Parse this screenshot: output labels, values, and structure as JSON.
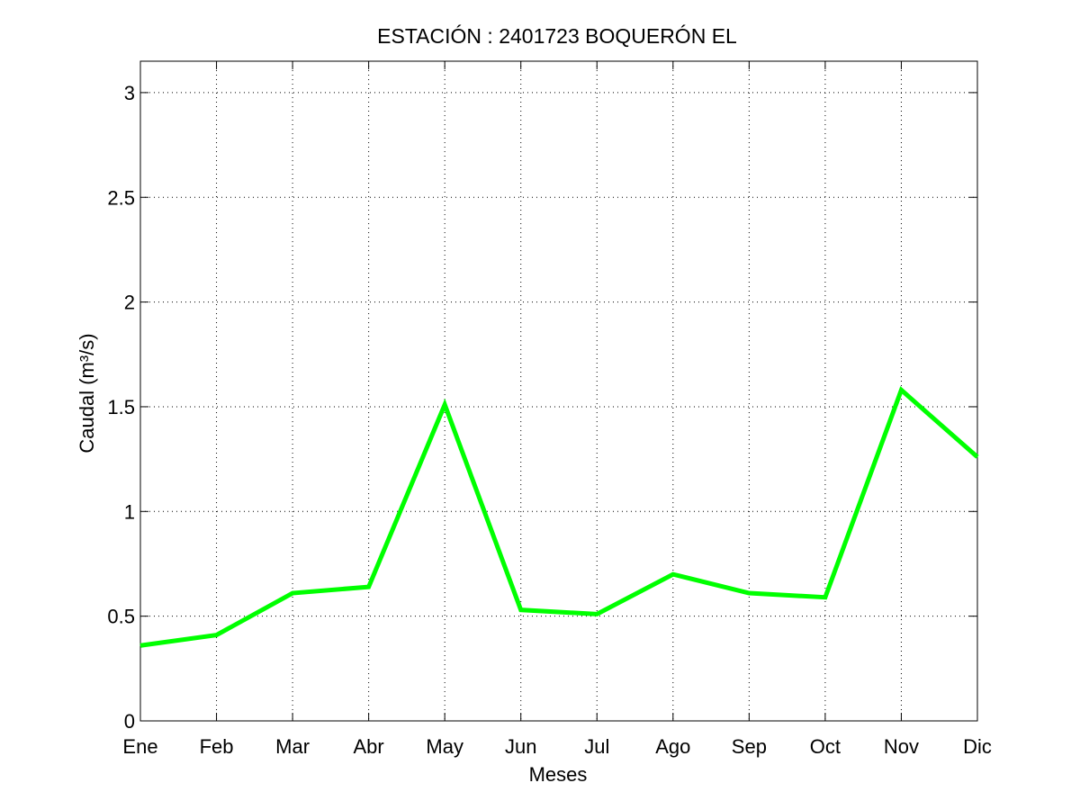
{
  "chart_data": {
    "type": "line",
    "title": "ESTACIÓN :  2401723  BOQUERÓN EL",
    "xlabel": "Meses",
    "ylabel": "Caudal (m³/s)",
    "categories": [
      "Ene",
      "Feb",
      "Mar",
      "Abr",
      "May",
      "Jun",
      "Jul",
      "Ago",
      "Sep",
      "Oct",
      "Nov",
      "Dic"
    ],
    "series": [
      {
        "values": [
          0.36,
          0.41,
          0.61,
          0.64,
          1.51,
          0.53,
          0.51,
          0.7,
          0.61,
          0.59,
          1.58,
          1.26
        ],
        "color": "#00ff00"
      }
    ],
    "ylim": [
      0,
      3.15
    ],
    "yticks": [
      0,
      0.5,
      1,
      1.5,
      2,
      2.5,
      3
    ],
    "ytick_labels": [
      "0",
      "0.5",
      "1",
      "1.5",
      "2",
      "2.5",
      "3"
    ],
    "grid": true,
    "grid_style": "dotted"
  }
}
